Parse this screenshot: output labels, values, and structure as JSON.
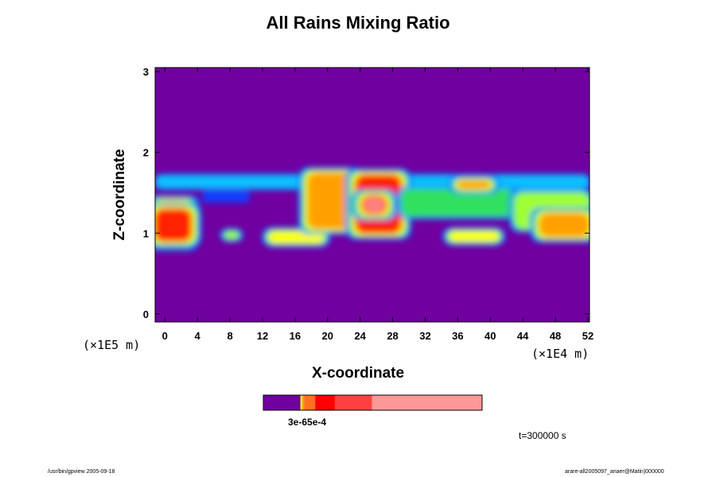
{
  "chart_data": {
    "type": "heatmap",
    "title": "All Rains Mixing Ratio",
    "xlabel": "X-coordinate",
    "ylabel": "Z-coordinate",
    "x_unit": "(×1E4 m)",
    "y_unit": "(×1E5 m)",
    "x_ticks": [
      "0",
      "4",
      "8",
      "12",
      "16",
      "20",
      "24",
      "28",
      "32",
      "36",
      "40",
      "44",
      "48",
      "52"
    ],
    "y_ticks": [
      "0",
      "1",
      "2",
      "3"
    ],
    "xlim": [
      -1.2,
      52.2
    ],
    "ylim": [
      -0.1,
      3.05
    ],
    "background_level_color": "#7000a0",
    "palette": [
      "#7000a0",
      "#1040ff",
      "#10c0ff",
      "#30e060",
      "#a0ff30",
      "#ffff00",
      "#ffa000",
      "#ff2000",
      "#ff8080"
    ],
    "features": [
      {
        "name": "upper-band",
        "x": [
          -1.2,
          52.2
        ],
        "z": [
          1.55,
          1.72
        ],
        "level": 2
      },
      {
        "name": "left-patch",
        "x": [
          -1.2,
          3.2
        ],
        "z": [
          0.85,
          1.4
        ],
        "level": 6
      },
      {
        "name": "left-deep",
        "x": [
          -1.2,
          3.2
        ],
        "z": [
          0.9,
          1.3
        ],
        "level": 7
      },
      {
        "name": "blue-left",
        "x": [
          4.5,
          10.5
        ],
        "z": [
          1.38,
          1.52
        ],
        "level": 1
      },
      {
        "name": "small-8",
        "x": [
          7.4,
          9.0
        ],
        "z": [
          0.93,
          1.02
        ],
        "level": 4
      },
      {
        "name": "mid-17",
        "x": [
          12.8,
          19.5
        ],
        "z": [
          0.88,
          1.02
        ],
        "level": 5
      },
      {
        "name": "core-20",
        "x": [
          17.5,
          23.5
        ],
        "z": [
          1.05,
          1.75
        ],
        "level": 6
      },
      {
        "name": "core-26",
        "x": [
          23.5,
          29.0
        ],
        "z": [
          1.0,
          1.72
        ],
        "level": 7
      },
      {
        "name": "peak-25",
        "x": [
          24.5,
          27.0
        ],
        "z": [
          1.25,
          1.45
        ],
        "level": 8
      },
      {
        "name": "band-30-42",
        "x": [
          29,
          43
        ],
        "z": [
          1.2,
          1.55
        ],
        "level": 3
      },
      {
        "name": "top-38",
        "x": [
          36,
          40
        ],
        "z": [
          1.55,
          1.65
        ],
        "level": 6
      },
      {
        "name": "low-38",
        "x": [
          35,
          41
        ],
        "z": [
          0.9,
          1.02
        ],
        "level": 5
      },
      {
        "name": "right-block",
        "x": [
          43,
          52.2
        ],
        "z": [
          1.05,
          1.5
        ],
        "level": 4
      },
      {
        "name": "right-core",
        "x": [
          46,
          52.2
        ],
        "z": [
          0.95,
          1.25
        ],
        "level": 6
      }
    ],
    "colorbar": {
      "colors": [
        "#7000a0",
        "#ffff00",
        "#ffa000",
        "#ff7020",
        "#ff0000",
        "#ff4040",
        "#ff9898"
      ],
      "fractions": [
        0.17,
        0.007,
        0.01,
        0.05,
        0.09,
        0.17,
        0.503
      ],
      "label": "3e-65e-4"
    },
    "time_label": "t=300000 s"
  },
  "footer": {
    "left": "/usr/bin/gpview 2005-09-18",
    "right": "arare-all2005097_anaer@Matin)000000"
  }
}
